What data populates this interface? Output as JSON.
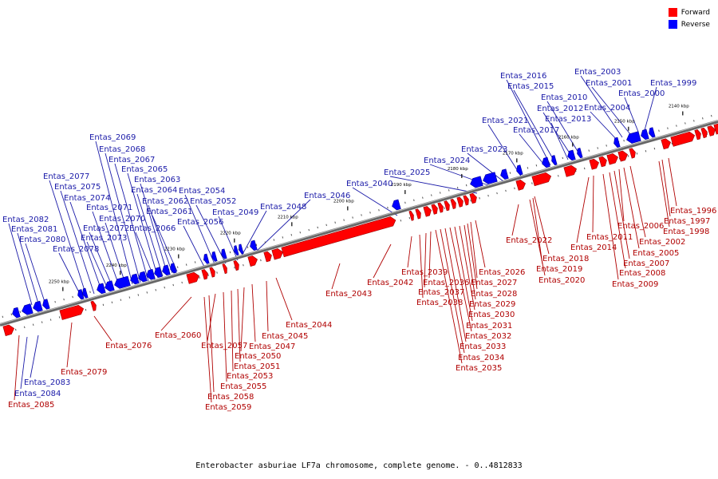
{
  "caption": "Enterobacter asburiae LF7a chromosome, complete genome. - 0..4812833",
  "legend": [
    {
      "label": "Forward",
      "color": "#ff0000"
    },
    {
      "label": "Reverse",
      "color": "#0000ff"
    }
  ],
  "ruler_ticks": [
    "2140 kbp",
    "2150 kbp",
    "2160 kbp",
    "2170 kbp",
    "2180 kbp",
    "2190 kbp",
    "2200 kbp",
    "2210 kbp",
    "2220 kbp",
    "2230 kbp",
    "2240 kbp",
    "2250 kbp"
  ],
  "genes": {
    "reverse": [
      "Entas_1999",
      "Entas_2000",
      "Entas_2001",
      "Entas_2003",
      "Entas_2004",
      "Entas_2010",
      "Entas_2012",
      "Entas_2013",
      "Entas_2015",
      "Entas_2016",
      "Entas_2017",
      "Entas_2021",
      "Entas_2023",
      "Entas_2024",
      "Entas_2025",
      "Entas_2040",
      "Entas_2046",
      "Entas_2048",
      "Entas_2049",
      "Entas_2052",
      "Entas_2054",
      "Entas_2056",
      "Entas_2061",
      "Entas_2062",
      "Entas_2063",
      "Entas_2064",
      "Entas_2065",
      "Entas_2066",
      "Entas_2067",
      "Entas_2068",
      "Entas_2069",
      "Entas_2070",
      "Entas_2071",
      "Entas_2072",
      "Entas_2073",
      "Entas_2074",
      "Entas_2075",
      "Entas_2077",
      "Entas_2078",
      "Entas_2080",
      "Entas_2081",
      "Entas_2082",
      "Entas_2083",
      "Entas_2084"
    ],
    "forward": [
      "Entas_1996",
      "Entas_1997",
      "Entas_1998",
      "Entas_2002",
      "Entas_2005",
      "Entas_2006",
      "Entas_2007",
      "Entas_2008",
      "Entas_2009",
      "Entas_2011",
      "Entas_2014",
      "Entas_2018",
      "Entas_2019",
      "Entas_2020",
      "Entas_2022",
      "Entas_2026",
      "Entas_2027",
      "Entas_2028",
      "Entas_2029",
      "Entas_2030",
      "Entas_2031",
      "Entas_2032",
      "Entas_2033",
      "Entas_2034",
      "Entas_2035",
      "Entas_2036",
      "Entas_2037",
      "Entas_2038",
      "Entas_2039",
      "Entas_2042",
      "Entas_2043",
      "Entas_2044",
      "Entas_2045",
      "Entas_2047",
      "Entas_2050",
      "Entas_2051",
      "Entas_2053",
      "Entas_2055",
      "Entas_2057",
      "Entas_2058",
      "Entas_2059",
      "Entas_2060",
      "Entas_2076",
      "Entas_2079",
      "Entas_2085"
    ]
  }
}
